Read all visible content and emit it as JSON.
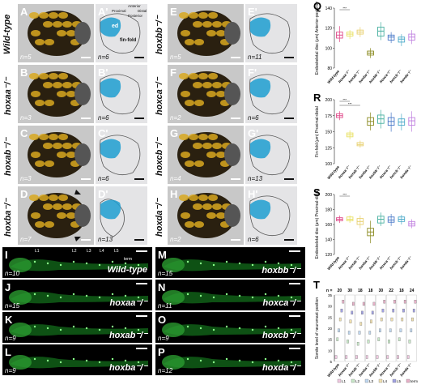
{
  "head_panels": [
    {
      "label": "A",
      "genotype": "Wild-type",
      "n": "n=5",
      "alt_label": "A'",
      "alt_n": "n=6"
    },
    {
      "label": "B",
      "genotype": "hoxaa⁻/⁻",
      "n": "n=3",
      "alt_label": "B'",
      "alt_n": "n=6"
    },
    {
      "label": "C",
      "genotype": "hoxab⁻/⁻",
      "n": "n=3",
      "alt_label": "C'",
      "alt_n": "n=6"
    },
    {
      "label": "D",
      "genotype": "hoxba⁻/⁻",
      "n": "n=7",
      "alt_label": "D'",
      "alt_n": "n=13"
    },
    {
      "label": "E",
      "genotype": "hoxbb⁻/⁻",
      "n": "n=5",
      "alt_label": "E'",
      "alt_n": "n=11"
    },
    {
      "label": "F",
      "genotype": "hoxca⁻/⁻",
      "n": "n=2",
      "alt_label": "F'",
      "alt_n": "n=6"
    },
    {
      "label": "G",
      "genotype": "hoxcb⁻/⁻",
      "n": "n=4",
      "alt_label": "G'",
      "alt_n": "n=13"
    },
    {
      "label": "H",
      "genotype": "hoxda⁻/⁻",
      "n": "n=2",
      "alt_label": "H'",
      "alt_n": "n=6"
    }
  ],
  "a_prime_annotations": {
    "ed": "ed",
    "fin_fold": "fin-fold",
    "compass_anterior": "Anterior",
    "compass_proximal": "Proximal",
    "compass_distal": "Distal",
    "compass_posterior": "Posterior"
  },
  "gfp_panels": [
    {
      "label": "I",
      "genotype": "Wild-type",
      "n": "n=10"
    },
    {
      "label": "J",
      "genotype": "hoxaa⁻/⁻",
      "n": "n=15"
    },
    {
      "label": "K",
      "genotype": "hoxab⁻/⁻",
      "n": "n=9"
    },
    {
      "label": "L",
      "genotype": "hoxba⁻/⁻",
      "n": "n=9"
    },
    {
      "label": "M",
      "genotype": "hoxbb⁻/⁻",
      "n": "n=15"
    },
    {
      "label": "N",
      "genotype": "hoxca⁻/⁻",
      "n": "n=11"
    },
    {
      "label": "O",
      "genotype": "hoxcb⁻/⁻",
      "n": "n=9"
    },
    {
      "label": "P",
      "genotype": "hoxda⁻/⁻",
      "n": "n=12"
    }
  ],
  "gfp_markers": {
    "l1": "L1",
    "l2": "L2",
    "l3": "L3",
    "l4": "L4",
    "l5": "L5",
    "term": "term"
  },
  "chart_data": [
    {
      "panel": "Q",
      "type": "box",
      "ylabel": "Endoskeletal disc (μm) Anterior-posterior",
      "ylim": [
        80,
        140
      ],
      "ticks": [
        80,
        100,
        120,
        140
      ],
      "categories": [
        "Wild-type",
        "hoxaa⁻/⁻",
        "hoxab⁻/⁻",
        "hoxba⁻/⁻",
        "hoxbb⁻/⁻",
        "hoxca⁻/⁻",
        "hoxcb⁻/⁻",
        "hoxda⁻/⁻"
      ],
      "colors": [
        "#e04a8a",
        "#e8e060",
        "#e8d070",
        "#8a8a20",
        "#48b0a0",
        "#4878c8",
        "#48a8c8",
        "#c080e0"
      ],
      "boxes": [
        [
          106,
          110,
          113,
          116,
          122
        ],
        [
          109,
          112,
          114,
          116,
          118
        ],
        [
          111,
          114,
          116,
          118,
          121
        ],
        [
          90,
          93,
          95,
          97,
          100
        ],
        [
          108,
          112,
          117,
          121,
          126
        ],
        [
          105,
          108,
          111,
          113,
          116
        ],
        [
          102,
          106,
          109,
          111,
          114
        ],
        [
          104,
          108,
          111,
          114,
          118
        ]
      ],
      "significance": "***"
    },
    {
      "panel": "R",
      "type": "box",
      "ylabel": "Fin-fold (μm) Proximal-distal",
      "ylim": [
        100,
        200
      ],
      "ticks": [
        100,
        125,
        150,
        175,
        200
      ],
      "categories": [
        "Wild-type",
        "hoxaa⁻/⁻",
        "hoxab⁻/⁻",
        "hoxba⁻/⁻",
        "hoxbb⁻/⁻",
        "hoxca⁻/⁻",
        "hoxcb⁻/⁻",
        "hoxda⁻/⁻"
      ],
      "colors": [
        "#e04a8a",
        "#e8e060",
        "#e8d070",
        "#8a8a20",
        "#48b0a0",
        "#4878c8",
        "#48a8c8",
        "#c080e0"
      ],
      "boxes": [
        [
          168,
          172,
          175,
          178,
          182
        ],
        [
          138,
          142,
          145,
          148,
          152
        ],
        [
          125,
          128,
          130,
          133,
          136
        ],
        [
          152,
          160,
          166,
          172,
          180
        ],
        [
          155,
          163,
          170,
          176,
          184
        ],
        [
          150,
          160,
          166,
          172,
          180
        ],
        [
          152,
          160,
          165,
          170,
          178
        ],
        [
          150,
          160,
          167,
          172,
          182
        ]
      ],
      "significance": [
        "***",
        "***"
      ]
    },
    {
      "panel": "S",
      "type": "box",
      "ylabel": "Endoskeletal disc (μm) Proximal-distal",
      "ylim": [
        120,
        200
      ],
      "ticks": [
        120,
        140,
        160,
        180,
        200
      ],
      "categories": [
        "Wild-type",
        "hoxaa⁻/⁻",
        "hoxab⁻/⁻",
        "hoxba⁻/⁻",
        "hoxbb⁻/⁻",
        "hoxca⁻/⁻",
        "hoxcb⁻/⁻",
        "hoxda⁻/⁻"
      ],
      "colors": [
        "#e04a8a",
        "#e8e060",
        "#e8d070",
        "#8a8a20",
        "#48b0a0",
        "#4878c8",
        "#48a8c8",
        "#c080e0"
      ],
      "boxes": [
        [
          162,
          165,
          167,
          169,
          172
        ],
        [
          162,
          165,
          167,
          170,
          172
        ],
        [
          155,
          160,
          164,
          168,
          172
        ],
        [
          135,
          145,
          150,
          155,
          165
        ],
        [
          158,
          162,
          167,
          171,
          176
        ],
        [
          158,
          163,
          166,
          170,
          174
        ],
        [
          160,
          164,
          167,
          170,
          173
        ],
        [
          155,
          158,
          161,
          164,
          167
        ]
      ],
      "significance": "***"
    },
    {
      "panel": "T",
      "type": "dot_box",
      "ylabel": "Somite level of neuromast position",
      "ylim": [
        5,
        35
      ],
      "ticks": [
        5,
        10,
        15,
        20,
        25,
        30,
        35
      ],
      "n_label": "n =",
      "n_values": [
        "20",
        "30",
        "18",
        "18",
        "30",
        "22",
        "18",
        "24"
      ],
      "categories": [
        "Wild-type",
        "hoxaa⁻/⁻",
        "hoxab⁻/⁻",
        "hoxba⁻/⁻",
        "hoxbb⁻/⁻",
        "hoxca⁻/⁻",
        "hoxcb⁻/⁻",
        "hoxda⁻/⁻"
      ],
      "series": [
        {
          "name": "L1",
          "color": "#f0c8e0"
        },
        {
          "name": "L2",
          "color": "#c8e8c8"
        },
        {
          "name": "L3",
          "color": "#c0d8f0"
        },
        {
          "name": "L4",
          "color": "#f0e0b0"
        },
        {
          "name": "L5",
          "color": "#a0a0e0"
        },
        {
          "name": "term",
          "color": "#e8b0c8"
        }
      ],
      "medians": [
        [
          7,
          15,
          19,
          24,
          28,
          32
        ],
        [
          7,
          14,
          18,
          23,
          27,
          31
        ],
        [
          7,
          13,
          18,
          22,
          27,
          31
        ],
        [
          7,
          14,
          18,
          23,
          27,
          31
        ],
        [
          7,
          15,
          19,
          24,
          28,
          32
        ],
        [
          7,
          14,
          19,
          24,
          28,
          32
        ],
        [
          7,
          15,
          19,
          24,
          28,
          32
        ],
        [
          7,
          14,
          19,
          24,
          28,
          32
        ]
      ]
    }
  ]
}
